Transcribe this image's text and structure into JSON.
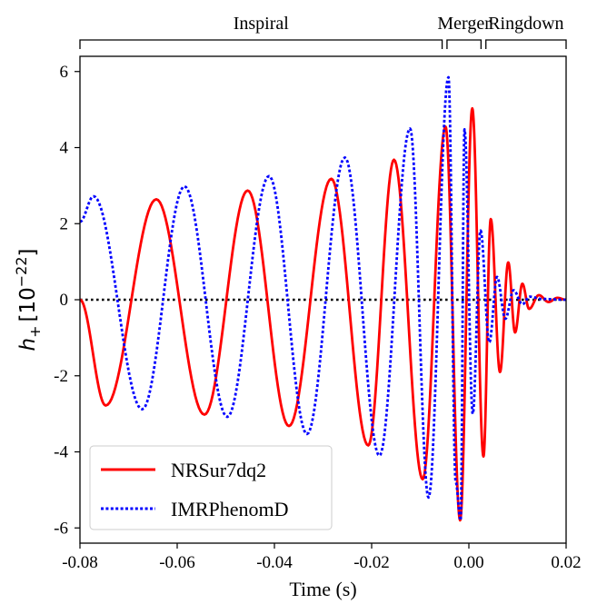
{
  "chart_data": {
    "type": "line",
    "title": "",
    "xlabel": "Time (s)",
    "ylabel_main": "h",
    "ylabel_sub": "+",
    "ylabel_bracket_open": "[10",
    "ylabel_exp": "−22",
    "ylabel_bracket_close": "]",
    "xlim": [
      -0.08,
      0.02
    ],
    "ylim": [
      -6.4,
      6.4
    ],
    "x_ticks": [
      -0.08,
      -0.06,
      -0.04,
      -0.02,
      0.0,
      0.02
    ],
    "x_tick_labels": [
      "-0.08",
      "-0.06",
      "-0.04",
      "-0.02",
      "0.00",
      "0.02"
    ],
    "y_ticks": [
      -6,
      -4,
      -2,
      0,
      2,
      4,
      6
    ],
    "y_tick_labels": [
      "-6",
      "-4",
      "-2",
      "0",
      "2",
      "4",
      "6"
    ],
    "grid": false,
    "legend_position": "lower-left",
    "zero_line": {
      "y": 0,
      "style": "dotted",
      "color": "#000000"
    },
    "phases": [
      {
        "label": "Inspiral",
        "x_start": -0.08,
        "x_end": -0.0055
      },
      {
        "label": "Merger",
        "x_start": -0.0045,
        "x_end": 0.0025
      },
      {
        "label": "Ringdown",
        "x_start": 0.0035,
        "x_end": 0.02
      }
    ],
    "series": [
      {
        "name": "NRSur7dq2",
        "color": "#ff0000",
        "style": "solid",
        "extrema": [
          [
            -0.08,
            0.0
          ],
          [
            -0.0747,
            -2.78
          ],
          [
            -0.0643,
            2.64
          ],
          [
            -0.0544,
            -3.02
          ],
          [
            -0.0455,
            2.87
          ],
          [
            -0.037,
            -3.32
          ],
          [
            -0.0283,
            3.18
          ],
          [
            -0.0207,
            -3.83
          ],
          [
            -0.0154,
            3.68
          ],
          [
            -0.0095,
            -4.72
          ],
          [
            -0.0048,
            4.55
          ],
          [
            -0.0018,
            -5.8
          ],
          [
            0.0007,
            5.03
          ],
          [
            0.003,
            -4.12
          ],
          [
            0.0045,
            2.12
          ],
          [
            0.0064,
            -1.9
          ],
          [
            0.0081,
            0.98
          ],
          [
            0.0095,
            -0.86
          ],
          [
            0.011,
            0.42
          ],
          [
            0.0124,
            -0.24
          ],
          [
            0.0144,
            0.12
          ],
          [
            0.0164,
            -0.06
          ],
          [
            0.0182,
            0.05
          ],
          [
            0.02,
            0.0
          ]
        ]
      },
      {
        "name": "IMRPhenomD",
        "color": "#0000ff",
        "style": "dotted",
        "extrema": [
          [
            -0.08,
            2.05
          ],
          [
            -0.0772,
            2.72
          ],
          [
            -0.0672,
            -2.88
          ],
          [
            -0.0585,
            2.98
          ],
          [
            -0.0497,
            -3.08
          ],
          [
            -0.0411,
            3.25
          ],
          [
            -0.0333,
            -3.53
          ],
          [
            -0.0255,
            3.74
          ],
          [
            -0.0184,
            -4.1
          ],
          [
            -0.0121,
            4.5
          ],
          [
            -0.0083,
            -5.2
          ],
          [
            -0.0042,
            5.85
          ],
          [
            -0.0027,
            -4.8
          ],
          [
            -0.0017,
            -5.8
          ],
          [
            -0.0009,
            4.48
          ],
          [
            0.0008,
            -3.0
          ],
          [
            0.0024,
            1.82
          ],
          [
            0.0042,
            -1.12
          ],
          [
            0.0058,
            0.6
          ],
          [
            0.0075,
            -0.5
          ],
          [
            0.0092,
            0.25
          ],
          [
            0.011,
            -0.12
          ],
          [
            0.0125,
            0.08
          ],
          [
            0.015,
            0.02
          ],
          [
            0.02,
            0.0
          ]
        ]
      }
    ]
  }
}
